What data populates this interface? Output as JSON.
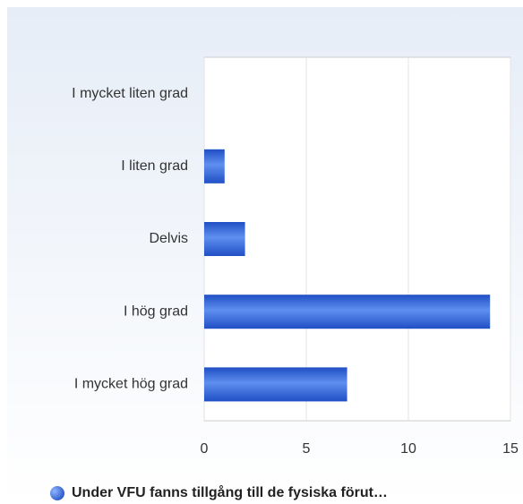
{
  "chart_data": {
    "type": "bar",
    "orientation": "horizontal",
    "categories": [
      "I mycket liten grad",
      "I liten grad",
      "Delvis",
      "I hög grad",
      "I mycket hög grad"
    ],
    "series": [
      {
        "name": "Under VFU fanns tillgång till de fysiska förut…",
        "color": "#1f4fc4",
        "values": [
          0,
          1,
          2,
          14,
          7
        ]
      }
    ],
    "xlim": [
      0,
      15
    ],
    "xticks": [
      0,
      5,
      10,
      15
    ],
    "grid": true,
    "legend": "bottom"
  }
}
